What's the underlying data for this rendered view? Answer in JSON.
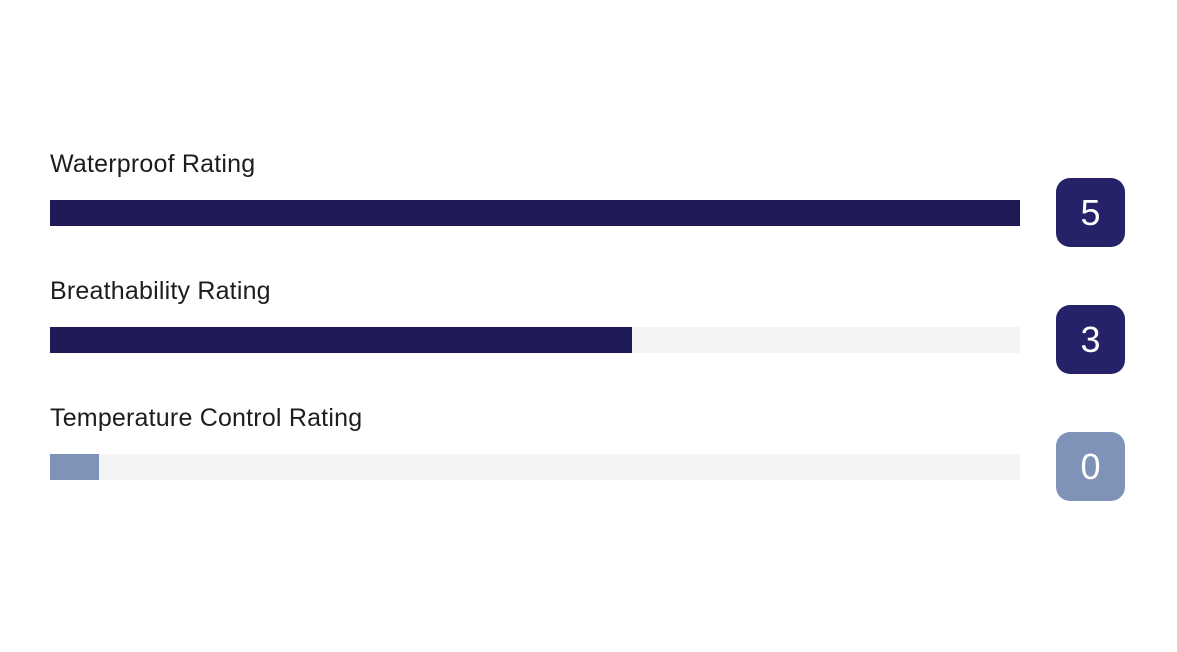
{
  "page": {
    "background": "#ffffff"
  },
  "chart_data": {
    "type": "bar",
    "orientation": "horizontal",
    "title": "",
    "xlabel": "",
    "ylabel": "",
    "categories": [
      "Waterproof Rating",
      "Breathability Rating",
      "Temperature Control Rating"
    ],
    "values": [
      5,
      3,
      0
    ],
    "value_range": [
      0,
      5
    ],
    "fill_percents": [
      100,
      60,
      5
    ],
    "grid": false,
    "legend_position": "none",
    "track_color": "#f4f4f4",
    "bar_color_rated": "#1e1a56",
    "bar_color_zero": "#7e93b7",
    "badge_color_rated": "#262269",
    "badge_color_zero": "#7e93b7",
    "badge_text_color": "#ffffff",
    "label_text_color": "#1d1d1f"
  },
  "rows": [
    {
      "label": "Waterproof Rating",
      "value": "5",
      "fill_percent": 100,
      "fill_color": "#1e1a56",
      "badge_color": "#262269"
    },
    {
      "label": "Breathability Rating",
      "value": "3",
      "fill_percent": 60,
      "fill_color": "#1e1a56",
      "badge_color": "#262269"
    },
    {
      "label": "Temperature Control Rating",
      "value": "0",
      "fill_percent": 5,
      "fill_color": "#7e93b7",
      "badge_color": "#7e93b7"
    }
  ]
}
